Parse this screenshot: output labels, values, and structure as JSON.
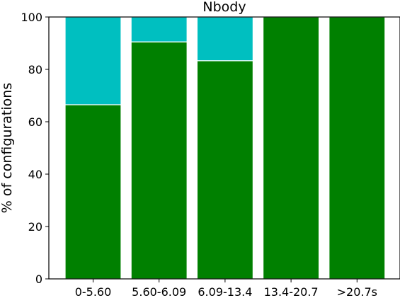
{
  "chart_data": {
    "type": "bar",
    "stacked": true,
    "title": "Nbody",
    "xlabel": "",
    "ylabel": "% of configurations",
    "ylim": [
      0,
      100
    ],
    "yticks": [
      0,
      20,
      40,
      60,
      80,
      100
    ],
    "categories": [
      "0-5.60",
      "5.60-6.09",
      "6.09-13.4",
      "13.4-20.7",
      ">20.7s"
    ],
    "series": [
      {
        "values": [
          66.5,
          90.5,
          83.3,
          100,
          100
        ],
        "color": "#008000"
      },
      {
        "values": [
          33.5,
          9.5,
          16.7,
          0,
          0
        ],
        "color": "#00bfc0"
      }
    ],
    "grid": false,
    "legend": "none"
  }
}
